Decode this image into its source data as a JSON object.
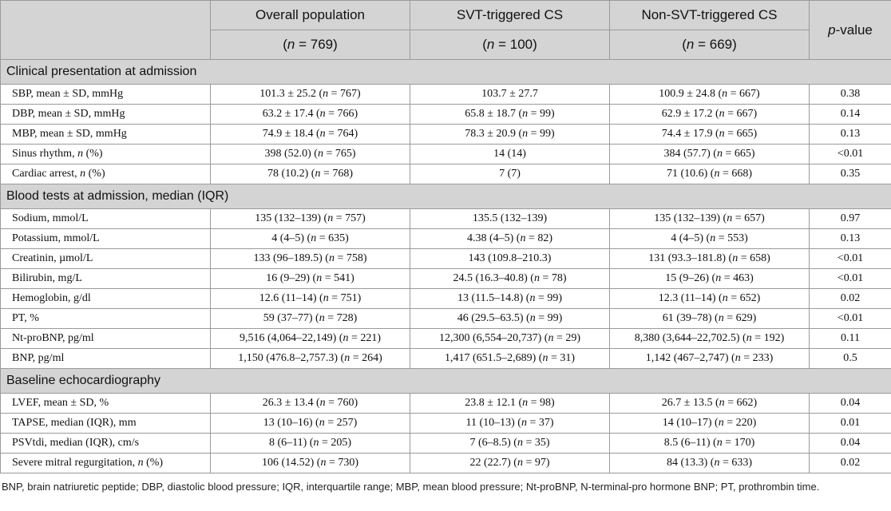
{
  "table": {
    "header": {
      "columns": [
        {
          "label": "Overall population",
          "n": "(n = 769)"
        },
        {
          "label": "SVT-triggered CS",
          "n": "(n = 100)"
        },
        {
          "label": "Non-SVT-triggered CS",
          "n": "(n = 669)"
        }
      ],
      "p_value": "p-value"
    },
    "sections": [
      {
        "title": "Clinical presentation at admission",
        "rows": [
          [
            "SBP, mean ± SD, mmHg",
            "101.3 ± 25.2 (n = 767)",
            "103.7 ± 27.7",
            "100.9 ± 24.8 (n = 667)",
            "0.38"
          ],
          [
            "DBP, mean ± SD, mmHg",
            "63.2 ± 17.4 (n = 766)",
            "65.8 ± 18.7 (n = 99)",
            "62.9 ± 17.2 (n = 667)",
            "0.14"
          ],
          [
            "MBP, mean ± SD, mmHg",
            "74.9 ± 18.4 (n = 764)",
            "78.3 ± 20.9 (n = 99)",
            "74.4 ± 17.9 (n = 665)",
            "0.13"
          ],
          [
            "Sinus rhythm, n (%)",
            "398 (52.0) (n = 765)",
            "14 (14)",
            "384 (57.7) (n = 665)",
            "<0.01"
          ],
          [
            "Cardiac arrest, n (%)",
            "78 (10.2) (n = 768)",
            "7 (7)",
            "71 (10.6) (n = 668)",
            "0.35"
          ]
        ]
      },
      {
        "title": "Blood tests at admission, median (IQR)",
        "rows": [
          [
            "Sodium, mmol/L",
            "135 (132–139) (n = 757)",
            "135.5 (132–139)",
            "135 (132–139) (n = 657)",
            "0.97"
          ],
          [
            "Potassium, mmol/L",
            "4 (4–5) (n = 635)",
            "4.38 (4–5) (n = 82)",
            "4 (4–5) (n = 553)",
            "0.13"
          ],
          [
            "Creatinin, µmol/L",
            "133 (96–189.5) (n = 758)",
            "143 (109.8–210.3)",
            "131 (93.3–181.8) (n = 658)",
            "<0.01"
          ],
          [
            "Bilirubin, mg/L",
            "16 (9–29) (n = 541)",
            "24.5 (16.3–40.8) (n = 78)",
            "15 (9–26) (n = 463)",
            "<0.01"
          ],
          [
            "Hemoglobin, g/dl",
            "12.6 (11–14) (n = 751)",
            "13 (11.5–14.8) (n = 99)",
            "12.3 (11–14) (n = 652)",
            "0.02"
          ],
          [
            "PT, %",
            "59 (37–77) (n = 728)",
            "46 (29.5–63.5) (n = 99)",
            "61 (39–78) (n = 629)",
            "<0.01"
          ],
          [
            "Nt-proBNP, pg/ml",
            "9,516 (4,064–22,149) (n = 221)",
            "12,300 (6,554–20,737) (n = 29)",
            "8,380 (3,644–22,702.5) (n = 192)",
            "0.11"
          ],
          [
            "BNP, pg/ml",
            "1,150 (476.8–2,757.3) (n = 264)",
            "1,417 (651.5–2,689) (n = 31)",
            "1,142 (467–2,747) (n = 233)",
            "0.5"
          ]
        ]
      },
      {
        "title": "Baseline echocardiography",
        "rows": [
          [
            "LVEF, mean ± SD, %",
            "26.3 ± 13.4 (n = 760)",
            "23.8 ± 12.1 (n = 98)",
            "26.7 ± 13.5 (n = 662)",
            "0.04"
          ],
          [
            "TAPSE, median (IQR), mm",
            "13 (10–16) (n = 257)",
            "11 (10–13) (n = 37)",
            "14 (10–17) (n = 220)",
            "0.01"
          ],
          [
            "PSVtdi, median (IQR), cm/s",
            "8 (6–11) (n = 205)",
            "7 (6–8.5) (n = 35)",
            "8.5 (6–11) (n = 170)",
            "0.04"
          ],
          [
            "Severe mitral regurgitation, n (%)",
            "106 (14.52) (n = 730)",
            "22 (22.7) (n = 97)",
            "84 (13.3) (n = 633)",
            "0.02"
          ]
        ]
      }
    ],
    "footnote": "BNP, brain natriuretic peptide; DBP, diastolic blood pressure; IQR, interquartile range; MBP, mean blood pressure; Nt-proBNP, N-terminal-pro hormone BNP; PT, prothrombin time."
  }
}
